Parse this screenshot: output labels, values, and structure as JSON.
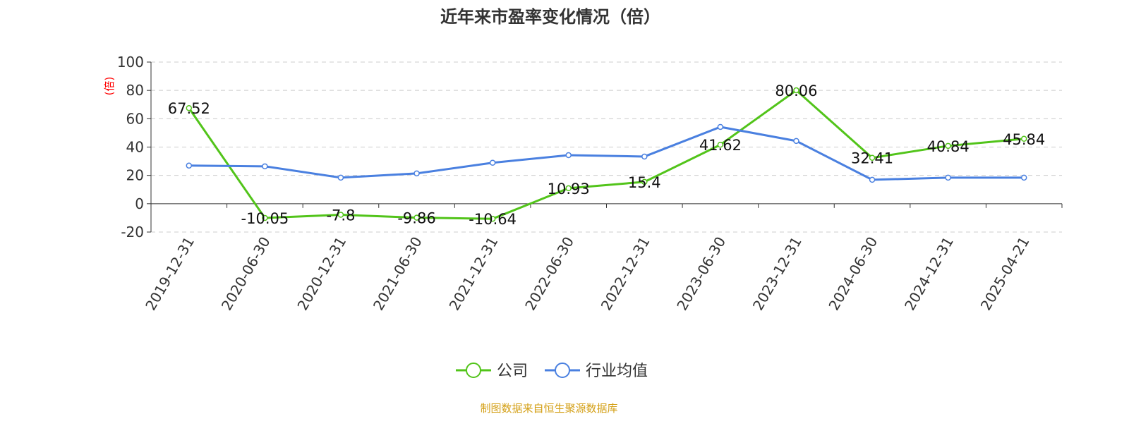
{
  "chart_data": {
    "type": "line",
    "title": "近年来市盈率变化情况（倍）",
    "ylabel": "(倍)",
    "ylim": [
      -20,
      100
    ],
    "yticks": [
      -20,
      0,
      20,
      40,
      60,
      80,
      100
    ],
    "grid": true,
    "legend_position": "bottom",
    "categories": [
      "2019-12-31",
      "2020-06-30",
      "2020-12-31",
      "2021-06-30",
      "2021-12-31",
      "2022-06-30",
      "2022-12-31",
      "2023-06-30",
      "2023-12-31",
      "2024-06-30",
      "2024-12-31",
      "2025-04-21"
    ],
    "series": [
      {
        "name": "公司",
        "color": "#52c41a",
        "labels": true,
        "values": [
          67.52,
          -10.05,
          -7.8,
          -9.86,
          -10.64,
          10.93,
          15.4,
          41.62,
          80.06,
          32.41,
          40.84,
          45.84
        ]
      },
      {
        "name": "行业均值",
        "color": "#4a80e0",
        "labels": false,
        "values": [
          26.9,
          26.4,
          18.4,
          21.4,
          28.9,
          34.3,
          33.3,
          54.2,
          44.3,
          16.9,
          18.4,
          18.4
        ]
      }
    ]
  },
  "footer": {
    "source": "制图数据来自恒生聚源数据库",
    "color": "#d4a017"
  },
  "ylabel_color": "#ff0000"
}
